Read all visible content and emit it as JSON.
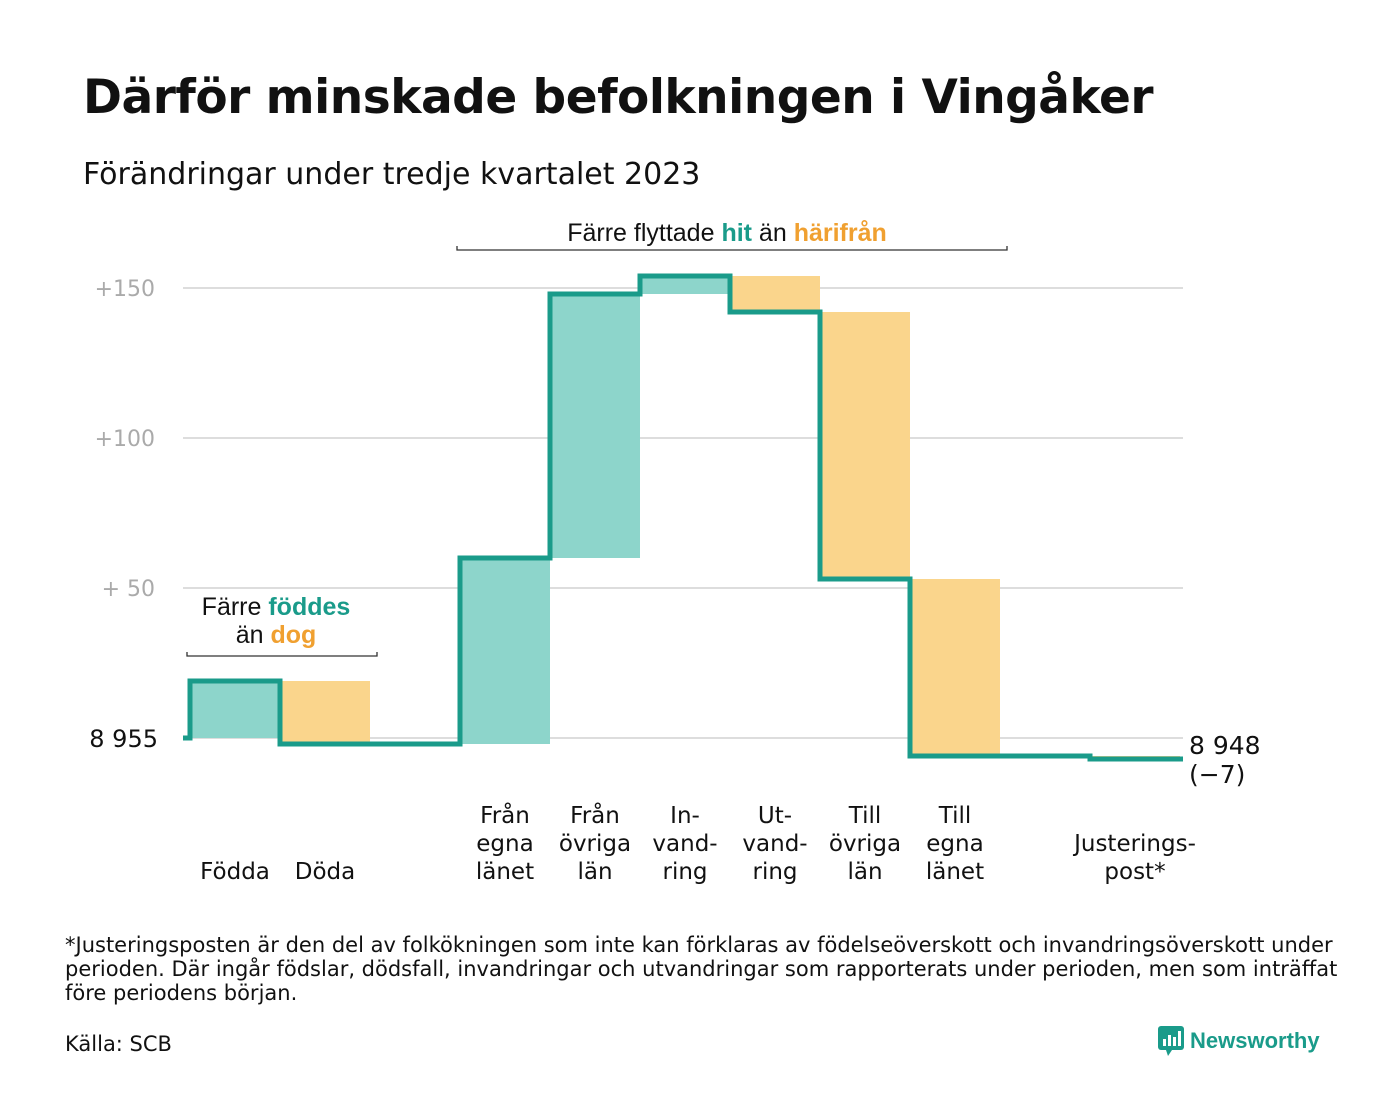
{
  "title": "Därför minskade befolkningen i Vingåker",
  "subtitle": "Förändringar under tredje kvartalet 2023",
  "footnote": "*Justeringsposten är den del av folkökningen som inte kan förklaras av födelseöverskott och invandringsöverskott under perioden. Där ingår födslar, dödsfall, invandringar och utvandringar som rapporterats under perioden, men som inträffat före periodens början.",
  "source": "Källa: SCB",
  "brand": "Newsworthy",
  "colors": {
    "increase": "#8dd5cb",
    "decrease": "#fad58c",
    "line": "#1a9b8a",
    "accent_orange": "#f0a030",
    "grid": "#dddddd",
    "tick": "#aaaaaa"
  },
  "chart_data": {
    "type": "waterfall",
    "start_value": 8955,
    "start_label": "8  955",
    "end_value": 8948,
    "end_label_value": "8 948",
    "end_label_change": "(−7)",
    "y_ticks": [
      {
        "value": 150,
        "label": "+150"
      },
      {
        "value": 100,
        "label": "+100"
      },
      {
        "value": 50,
        "label": "+  50"
      }
    ],
    "ylim": [
      -10,
      160
    ],
    "steps": [
      {
        "label": [
          "Födda"
        ],
        "change": 19,
        "kind": "increase"
      },
      {
        "label": [
          "Döda"
        ],
        "change": -21,
        "kind": "decrease"
      },
      {
        "label": [],
        "change": 0,
        "kind": "gap"
      },
      {
        "label": [
          "Från",
          "egna",
          "länet"
        ],
        "change": 62,
        "kind": "increase"
      },
      {
        "label": [
          "Från",
          "övriga",
          "län"
        ],
        "change": 88,
        "kind": "increase"
      },
      {
        "label": [
          "In-",
          "vand-",
          "ring"
        ],
        "change": 6,
        "kind": "increase"
      },
      {
        "label": [
          "Ut-",
          "vand-",
          "ring"
        ],
        "change": -12,
        "kind": "decrease"
      },
      {
        "label": [
          "Till",
          "övriga",
          "län"
        ],
        "change": -89,
        "kind": "decrease"
      },
      {
        "label": [
          "Till",
          "egna",
          "länet"
        ],
        "change": -59,
        "kind": "decrease"
      },
      {
        "label": [],
        "change": 0,
        "kind": "gap"
      },
      {
        "label": [
          "Justerings-",
          "post*"
        ],
        "change": -1,
        "kind": "decrease"
      }
    ],
    "annotations": [
      {
        "lines": [
          [
            {
              "text": "Färre ",
              "style": "plain"
            },
            {
              "text": "föddes",
              "style": "increase"
            }
          ],
          [
            {
              "text": "än ",
              "style": "plain"
            },
            {
              "text": "dog",
              "style": "decrease"
            }
          ]
        ]
      },
      {
        "lines": [
          [
            {
              "text": "Färre flyttade ",
              "style": "plain"
            },
            {
              "text": "hit",
              "style": "increase"
            },
            {
              "text": " än ",
              "style": "plain"
            },
            {
              "text": "härifrån",
              "style": "decrease"
            }
          ]
        ]
      }
    ]
  }
}
